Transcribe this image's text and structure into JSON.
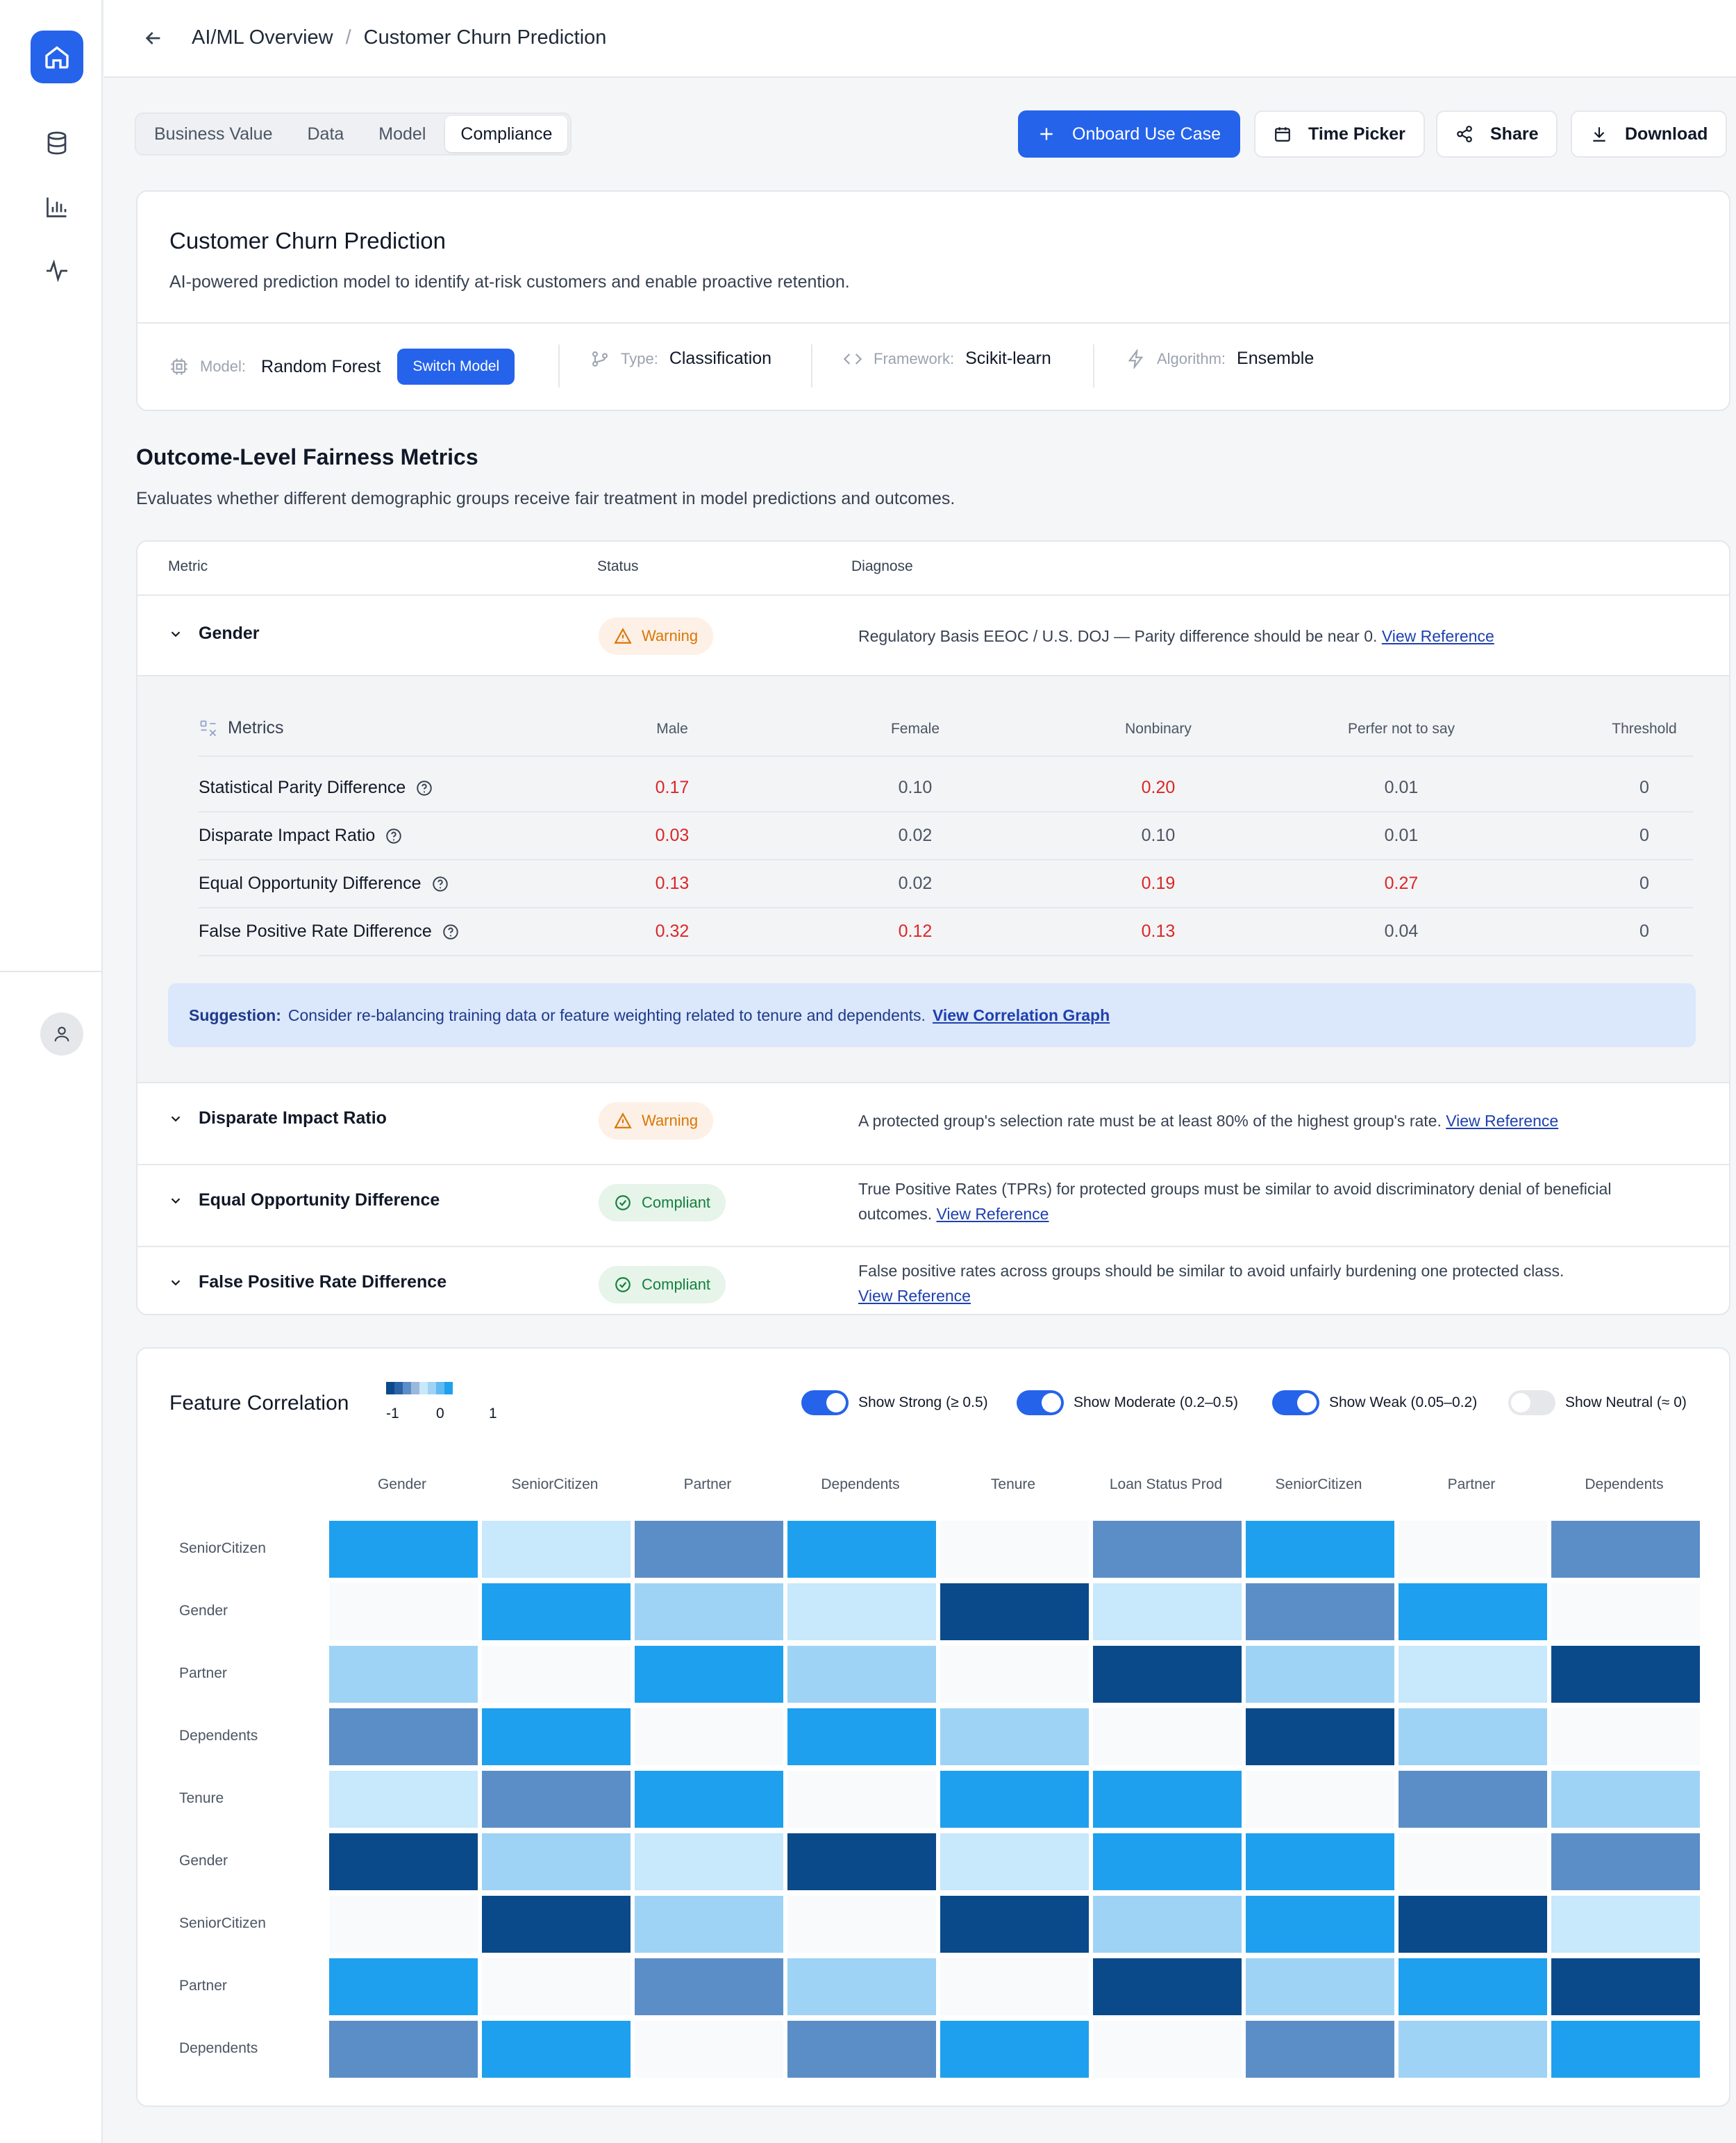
{
  "breadcrumb": {
    "parent": "AI/ML Overview",
    "separator": "/",
    "current": "Customer Churn Prediction"
  },
  "tabs": [
    {
      "label": "Business Value",
      "active": false
    },
    {
      "label": "Data",
      "active": false
    },
    {
      "label": "Model",
      "active": false
    },
    {
      "label": "Compliance",
      "active": true
    }
  ],
  "toolbar": {
    "onboard": "Onboard Use Case",
    "time_picker": "Time Picker",
    "share": "Share",
    "download": "Download"
  },
  "model_card": {
    "title": "Customer Churn Prediction",
    "description": "AI-powered prediction model to identify at-risk customers and enable proactive retention.",
    "model_key": "Model:",
    "model_value": "Random Forest",
    "switch_label": "Switch Model",
    "type_key": "Type:",
    "type_value": "Classification",
    "framework_key": "Framework:",
    "framework_value": "Scikit-learn",
    "algorithm_key": "Algorithm:",
    "algorithm_value": "Ensemble"
  },
  "fairness": {
    "title": "Outcome-Level Fairness Metrics",
    "description": "Evaluates whether different demographic groups receive fair treatment in model predictions and outcomes.",
    "headers": {
      "metric": "Metric",
      "status": "Status",
      "diagnose": "Diagnose"
    },
    "rows": [
      {
        "label": "Gender",
        "status": "Warning",
        "diagnose": "Regulatory Basis EEOC / U.S. DOJ — Parity difference should be near 0.",
        "link": "View Reference"
      },
      {
        "label": "Disparate Impact Ratio",
        "status": "Warning",
        "diagnose": "A protected group's selection rate must be at least 80% of the highest group's rate.",
        "link": "View Reference"
      },
      {
        "label": "Equal Opportunity Difference",
        "status": "Compliant",
        "diagnose": "True Positive Rates (TPRs) for protected groups must be similar to avoid discriminatory denial of beneficial outcomes.",
        "link": "View Reference"
      },
      {
        "label": "False Positive Rate Difference",
        "status": "Compliant",
        "diagnose": "False positive rates across groups should be similar to avoid unfairly burdening one protected class.",
        "link": "View Reference"
      }
    ],
    "sub_table": {
      "header_metrics": "Metrics",
      "columns": [
        "Male",
        "Female",
        "Nonbinary",
        "Perfer not to say",
        "Threshold"
      ],
      "rows": [
        {
          "name": "Statistical Parity Difference",
          "values": [
            "0.17",
            "0.10",
            "0.20",
            "0.01",
            "0"
          ],
          "red": [
            true,
            false,
            true,
            false,
            false
          ]
        },
        {
          "name": "Disparate Impact Ratio",
          "values": [
            "0.03",
            "0.02",
            "0.10",
            "0.01",
            "0"
          ],
          "red": [
            true,
            false,
            false,
            false,
            false
          ]
        },
        {
          "name": "Equal Opportunity Difference",
          "values": [
            "0.13",
            "0.02",
            "0.19",
            "0.27",
            "0"
          ],
          "red": [
            true,
            false,
            true,
            true,
            false
          ]
        },
        {
          "name": "False Positive Rate Difference",
          "values": [
            "0.32",
            "0.12",
            "0.13",
            "0.04",
            "0"
          ],
          "red": [
            true,
            true,
            true,
            false,
            false
          ]
        }
      ]
    },
    "suggestion": {
      "label": "Suggestion:",
      "text": "Consider re-balancing training data or feature weighting related to tenure and dependents.",
      "link": "View Correlation Graph"
    }
  },
  "correlation": {
    "title": "Feature Correlation",
    "legend_ticks": [
      "-1",
      "0",
      "1"
    ],
    "toggles": [
      {
        "label": "Show Strong (≥ 0.5)",
        "on": true
      },
      {
        "label": "Show Moderate (0.2–0.5)",
        "on": true
      },
      {
        "label": "Show Weak (0.05–0.2)",
        "on": true
      },
      {
        "label": "Show Neutral (≈ 0)",
        "on": false
      }
    ],
    "colors": {
      "0": "#f9fafb",
      "1": "#c8e8fb",
      "2": "#9fd3f5",
      "3": "#5b8ec7",
      "4": "#1fa0ee",
      "5": "#0b4a8a"
    },
    "columns": [
      "Gender",
      "SeniorCitizen",
      "Partner",
      "Dependents",
      "Tenure",
      "Loan Status Prod",
      "SeniorCitizen",
      "Partner",
      "Dependents"
    ],
    "rows": [
      "SeniorCitizen",
      "Gender",
      "Partner",
      "Dependents",
      "Tenure",
      "Gender",
      "SeniorCitizen",
      "Partner",
      "Dependents"
    ],
    "matrix": [
      [
        4,
        1,
        3,
        4,
        0,
        3,
        4,
        0,
        3
      ],
      [
        0,
        4,
        2,
        1,
        5,
        1,
        3,
        4,
        0
      ],
      [
        2,
        0,
        4,
        2,
        0,
        5,
        2,
        1,
        5
      ],
      [
        3,
        4,
        0,
        4,
        2,
        0,
        5,
        2,
        0
      ],
      [
        1,
        3,
        4,
        0,
        4,
        4,
        0,
        3,
        2
      ],
      [
        5,
        2,
        1,
        5,
        1,
        4,
        4,
        0,
        3
      ],
      [
        0,
        5,
        2,
        0,
        5,
        2,
        4,
        5,
        1
      ],
      [
        4,
        0,
        3,
        2,
        0,
        5,
        2,
        4,
        5
      ],
      [
        3,
        4,
        0,
        3,
        4,
        0,
        3,
        2,
        4
      ]
    ]
  }
}
